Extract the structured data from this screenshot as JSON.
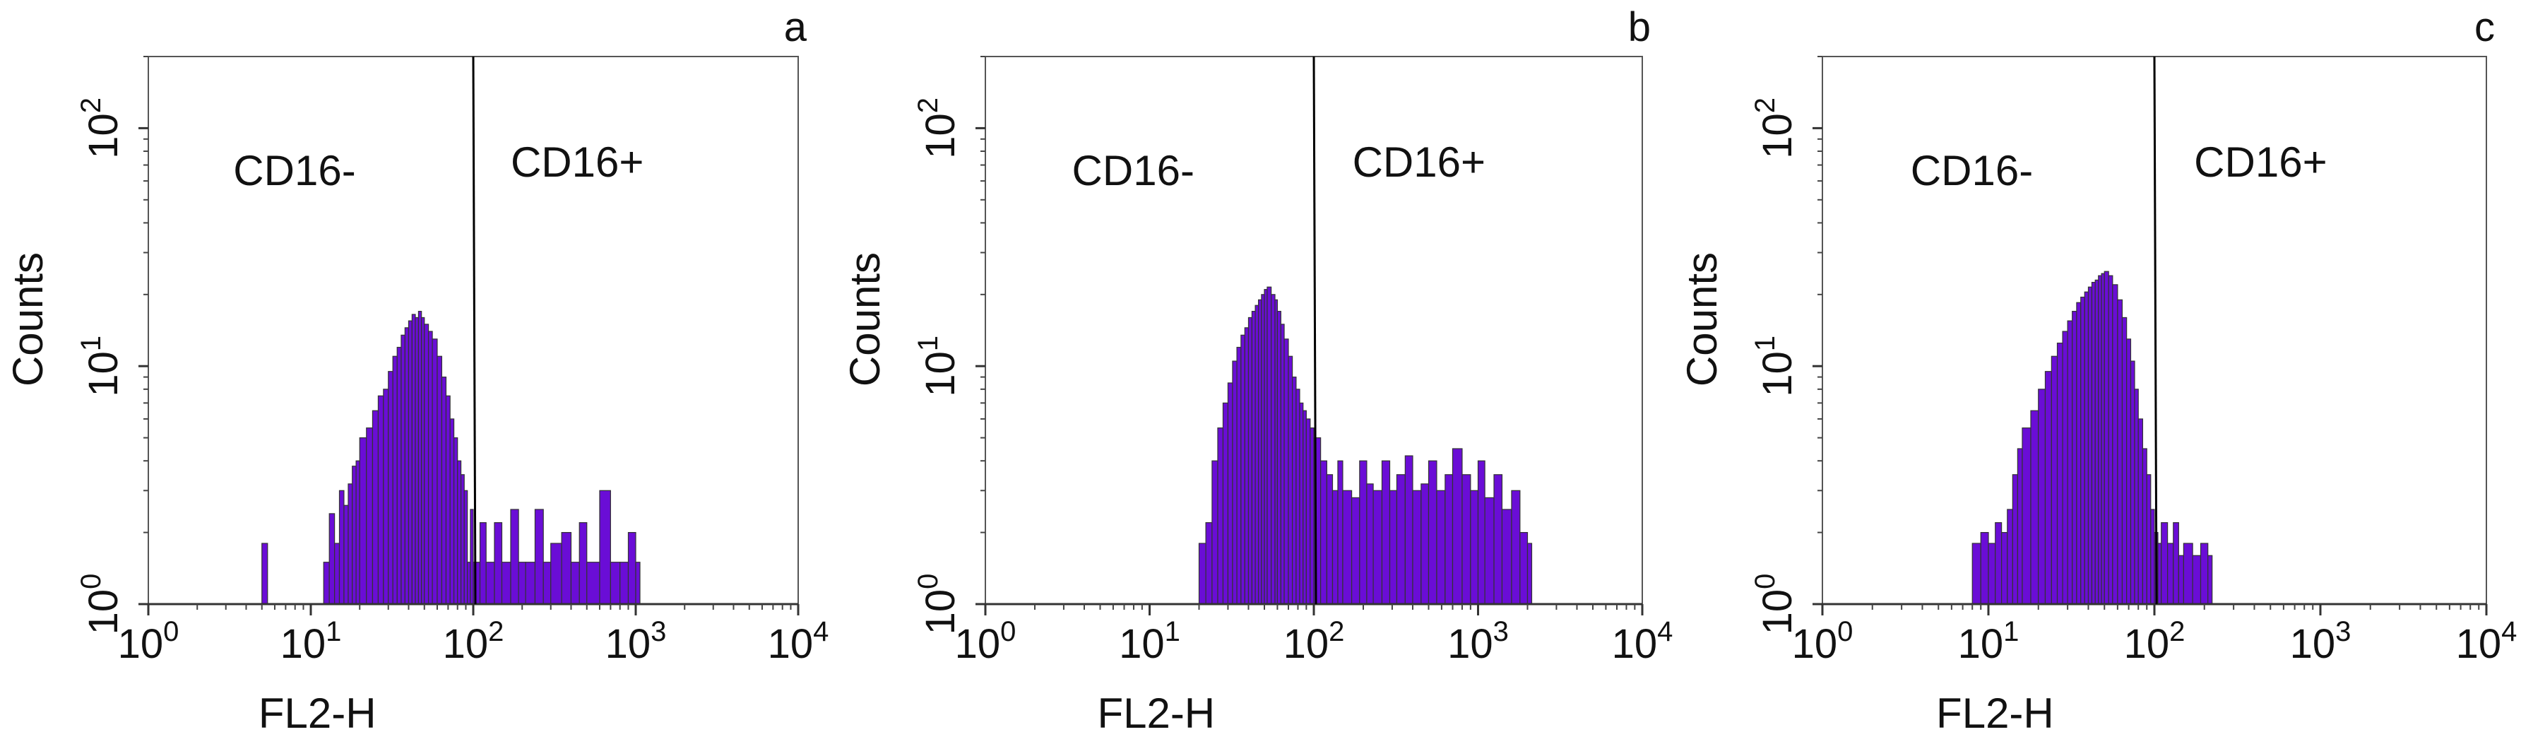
{
  "chart_data": [
    {
      "type": "bar",
      "panel_letter": "a",
      "xlabel": "FL2-H",
      "ylabel": "Counts",
      "x_scale": "log",
      "xlim": [
        1,
        10000
      ],
      "xticks": [
        {
          "base": "10",
          "exp": "0"
        },
        {
          "base": "10",
          "exp": "1"
        },
        {
          "base": "10",
          "exp": "2"
        },
        {
          "base": "10",
          "exp": "3"
        },
        {
          "base": "10",
          "exp": "4"
        }
      ],
      "y_scale": "log",
      "ylim": [
        1,
        200
      ],
      "yticks": [
        {
          "base": "10",
          "exp": "0"
        },
        {
          "base": "10",
          "exp": "1"
        },
        {
          "base": "10",
          "exp": "2"
        }
      ],
      "gate_x": 100,
      "regions": [
        "CD16-",
        "CD16+"
      ],
      "fill_color": "#6a0dd6",
      "edge_color": "#333333",
      "series": [
        {
          "x": [
            5,
            12,
            13,
            14,
            15,
            16,
            17,
            18,
            19,
            20,
            22,
            24,
            26,
            28,
            30,
            32,
            34,
            36,
            38,
            40,
            42,
            44,
            46,
            48,
            50,
            53,
            56,
            60,
            64,
            68,
            72,
            76,
            80,
            84,
            88,
            92,
            96,
            100,
            110,
            120,
            135,
            150,
            170,
            190,
            210,
            240,
            270,
            300,
            350,
            400,
            450,
            500,
            600,
            700,
            800,
            900,
            1000
          ],
          "y": [
            1.8,
            1.5,
            2.4,
            1.8,
            3.0,
            2.6,
            3.2,
            3.8,
            4.0,
            5.0,
            5.5,
            6.5,
            7.5,
            8.0,
            9.5,
            11.0,
            12.0,
            13.5,
            14.5,
            15.5,
            16.5,
            16.0,
            17.0,
            16.0,
            15.0,
            14.0,
            13.0,
            11.0,
            9.0,
            7.5,
            6.0,
            5.0,
            4.0,
            3.5,
            3.0,
            1.5,
            2.5,
            1.5,
            2.2,
            1.5,
            2.2,
            1.5,
            2.5,
            1.5,
            1.5,
            2.5,
            1.5,
            1.8,
            2.0,
            1.5,
            2.2,
            1.5,
            3.0,
            1.5,
            1.5,
            2.0,
            1.5
          ]
        }
      ]
    },
    {
      "type": "bar",
      "panel_letter": "b",
      "xlabel": "FL2-H",
      "ylabel": "Counts",
      "x_scale": "log",
      "xlim": [
        1,
        10000
      ],
      "xticks": [
        {
          "base": "10",
          "exp": "0"
        },
        {
          "base": "10",
          "exp": "1"
        },
        {
          "base": "10",
          "exp": "2"
        },
        {
          "base": "10",
          "exp": "3"
        },
        {
          "base": "10",
          "exp": "4"
        }
      ],
      "y_scale": "log",
      "ylim": [
        1,
        200
      ],
      "yticks": [
        {
          "base": "10",
          "exp": "0"
        },
        {
          "base": "10",
          "exp": "1"
        },
        {
          "base": "10",
          "exp": "2"
        }
      ],
      "gate_x": 100,
      "regions": [
        "CD16-",
        "CD16+"
      ],
      "fill_color": "#6a0dd6",
      "edge_color": "#333333",
      "series": [
        {
          "x": [
            20,
            22,
            24,
            26,
            28,
            30,
            32,
            34,
            36,
            38,
            40,
            42,
            44,
            46,
            48,
            50,
            52,
            55,
            58,
            60,
            63,
            66,
            70,
            74,
            78,
            82,
            86,
            90,
            95,
            100,
            110,
            120,
            130,
            140,
            150,
            170,
            190,
            210,
            230,
            260,
            290,
            320,
            360,
            400,
            450,
            500,
            560,
            630,
            700,
            800,
            900,
            1000,
            1100,
            1250,
            1400,
            1600,
            1800,
            2000
          ],
          "y": [
            1.8,
            2.2,
            4.0,
            5.5,
            7.0,
            8.5,
            10.5,
            12.0,
            13.5,
            14.5,
            16.0,
            17.0,
            18.0,
            19.0,
            20.0,
            21.0,
            21.5,
            20.0,
            19.0,
            17.0,
            15.0,
            13.0,
            11.0,
            9.0,
            8.0,
            7.0,
            6.5,
            6.0,
            5.5,
            5.0,
            4.0,
            3.5,
            3.0,
            4.0,
            3.0,
            2.8,
            4.0,
            3.2,
            3.0,
            4.0,
            3.0,
            3.5,
            4.2,
            3.0,
            3.2,
            4.0,
            3.0,
            3.5,
            4.5,
            3.5,
            3.0,
            4.0,
            2.8,
            3.5,
            2.5,
            3.0,
            2.0,
            1.8
          ]
        }
      ]
    },
    {
      "type": "bar",
      "panel_letter": "c",
      "xlabel": "FL2-H",
      "ylabel": "Counts",
      "x_scale": "log",
      "xlim": [
        1,
        10000
      ],
      "xticks": [
        {
          "base": "10",
          "exp": "0"
        },
        {
          "base": "10",
          "exp": "1"
        },
        {
          "base": "10",
          "exp": "2"
        },
        {
          "base": "10",
          "exp": "3"
        },
        {
          "base": "10",
          "exp": "4"
        }
      ],
      "y_scale": "log",
      "ylim": [
        1,
        200
      ],
      "yticks": [
        {
          "base": "10",
          "exp": "0"
        },
        {
          "base": "10",
          "exp": "1"
        },
        {
          "base": "10",
          "exp": "2"
        }
      ],
      "gate_x": 100,
      "regions": [
        "CD16-",
        "CD16+"
      ],
      "fill_color": "#6a0dd6",
      "edge_color": "#333333",
      "series": [
        {
          "x": [
            8,
            9,
            10,
            11,
            12,
            13,
            14,
            15,
            16,
            18,
            20,
            22,
            24,
            26,
            28,
            30,
            32,
            34,
            36,
            38,
            40,
            42,
            44,
            46,
            48,
            50,
            53,
            56,
            60,
            64,
            68,
            72,
            76,
            80,
            85,
            90,
            95,
            100,
            105,
            110,
            120,
            130,
            140,
            150,
            170,
            190,
            210
          ],
          "y": [
            1.8,
            2.0,
            1.8,
            2.2,
            2.0,
            2.5,
            3.5,
            4.5,
            5.5,
            6.5,
            8.0,
            9.5,
            11.0,
            12.5,
            14.0,
            15.5,
            17.0,
            18.5,
            19.5,
            20.5,
            21.5,
            22.5,
            23.0,
            24.0,
            24.5,
            25.0,
            24.0,
            22.0,
            19.0,
            16.0,
            13.0,
            10.5,
            8.0,
            6.0,
            4.5,
            3.5,
            2.5,
            2.0,
            1.8,
            2.2,
            1.8,
            2.2,
            1.6,
            1.8,
            1.6,
            1.8,
            1.6
          ]
        }
      ]
    }
  ]
}
